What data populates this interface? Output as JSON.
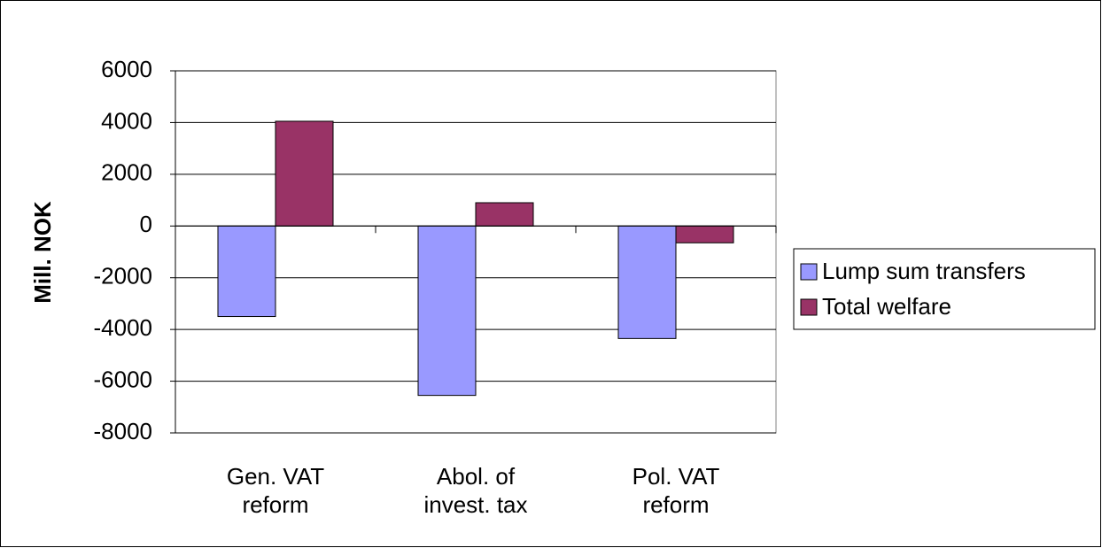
{
  "chart_data": {
    "type": "bar",
    "y_label": "Mill. NOK",
    "categories": [
      "Gen. VAT reform",
      "Abol. of invest. tax",
      "Pol. VAT reform"
    ],
    "series": [
      {
        "name": "Lump sum transfers",
        "color": "#9999ff",
        "values": [
          -3500,
          -6550,
          -4350
        ]
      },
      {
        "name": "Total welfare",
        "color": "#993366",
        "values": [
          4050,
          900,
          -650
        ]
      }
    ],
    "ylim": [
      -8000,
      6000
    ],
    "yticks": [
      -8000,
      -6000,
      -4000,
      -2000,
      0,
      2000,
      4000,
      6000
    ],
    "grid": true,
    "legend": "right"
  }
}
